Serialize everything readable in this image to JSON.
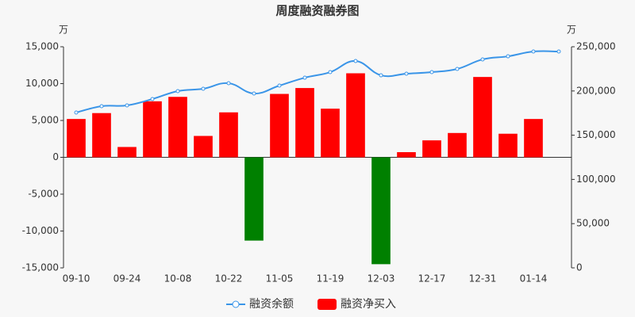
{
  "chart_data": {
    "type": "bar-line",
    "title": "周度融资融券图",
    "y_unit": "万",
    "y2_unit": "万",
    "categories": [
      "09-10",
      null,
      "09-24",
      null,
      "10-08",
      null,
      "10-22",
      null,
      "11-05",
      null,
      "11-19",
      null,
      "12-03",
      null,
      "12-17",
      null,
      "12-31",
      null,
      "01-14",
      null
    ],
    "series": [
      {
        "name": "融资余额",
        "type": "line",
        "axis": "y2",
        "color": "#3a95e8",
        "values": [
          175600,
          182800,
          183700,
          190900,
          199800,
          202500,
          208800,
          197100,
          206100,
          215000,
          221300,
          233900,
          217700,
          219500,
          221300,
          224900,
          235700,
          239200,
          244600,
          244600
        ]
      },
      {
        "name": "融资净买入",
        "type": "bar",
        "axis": "y",
        "color": "#ff0000",
        "negative_color": "#008000",
        "values": [
          5200,
          6000,
          1400,
          7600,
          8200,
          2900,
          6100,
          -11300,
          8600,
          9400,
          6600,
          11400,
          -14500,
          700,
          2300,
          3300,
          10900,
          3200,
          5200,
          null
        ]
      }
    ],
    "ylim": [
      -15000,
      15000
    ],
    "yticks": [
      {
        "value": -15000,
        "label": "-15,000"
      },
      {
        "value": -10000,
        "label": "-10,000"
      },
      {
        "value": -5000,
        "label": "-5,000"
      },
      0,
      {
        "value": 5000,
        "label": "5,000"
      },
      {
        "value": 10000,
        "label": "10,000"
      },
      {
        "value": 15000,
        "label": "15,000"
      }
    ],
    "y2lim": [
      0,
      250000
    ],
    "y2ticks": [
      0,
      {
        "value": 50000,
        "label": "50,000"
      },
      {
        "value": 100000,
        "label": "100,000"
      },
      {
        "value": 150000,
        "label": "150,000"
      },
      {
        "value": 200000,
        "label": "200,000"
      },
      {
        "value": 250000,
        "label": "250,000"
      }
    ],
    "grid": false,
    "legend": "bottom"
  }
}
